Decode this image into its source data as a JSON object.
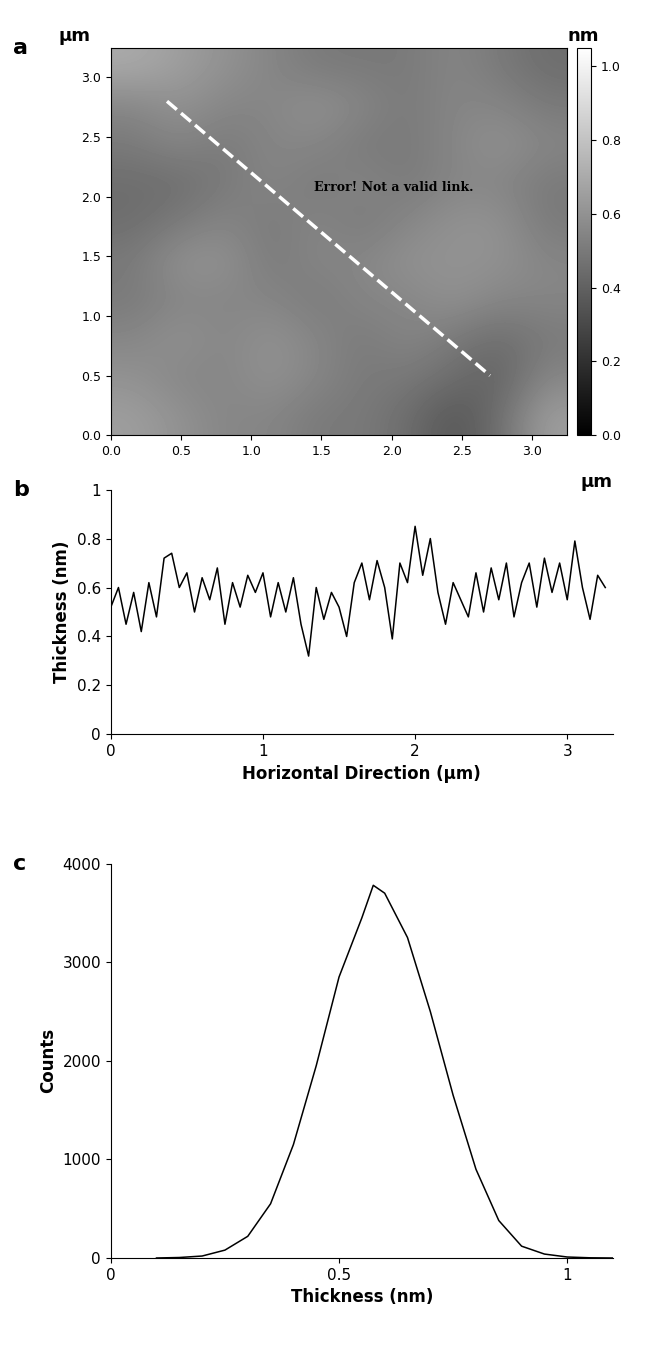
{
  "chart_data": [
    {
      "panel": "a",
      "type": "heatmap",
      "xlim": [
        0,
        3.25
      ],
      "ylim": [
        0,
        3.25
      ],
      "xticks": [
        0.0,
        0.5,
        1.0,
        1.5,
        2.0,
        2.5,
        3.0
      ],
      "yticks": [
        0.0,
        0.5,
        1.0,
        1.5,
        2.0,
        2.5,
        3.0
      ],
      "x_unit_label": "μm",
      "y_unit_label": "μm",
      "color": "gray",
      "cells": [
        [
          0.65,
          0.6,
          0.55,
          0.55,
          0.5,
          0.5,
          0.45,
          0.35,
          0.45,
          0.65
        ],
        [
          0.6,
          0.55,
          0.55,
          0.6,
          0.55,
          0.5,
          0.5,
          0.45,
          0.4,
          0.55
        ],
        [
          0.55,
          0.6,
          0.55,
          0.6,
          0.55,
          0.5,
          0.55,
          0.5,
          0.45,
          0.5
        ],
        [
          0.5,
          0.55,
          0.55,
          0.55,
          0.5,
          0.55,
          0.55,
          0.6,
          0.55,
          0.55
        ],
        [
          0.5,
          0.6,
          0.6,
          0.5,
          0.55,
          0.55,
          0.6,
          0.6,
          0.6,
          0.55
        ],
        [
          0.45,
          0.5,
          0.55,
          0.5,
          0.55,
          0.5,
          0.55,
          0.6,
          0.6,
          0.5
        ],
        [
          0.45,
          0.45,
          0.5,
          0.55,
          0.5,
          0.55,
          0.5,
          0.55,
          0.55,
          0.5
        ],
        [
          0.5,
          0.55,
          0.5,
          0.55,
          0.55,
          0.5,
          0.5,
          0.55,
          0.6,
          0.55
        ],
        [
          0.55,
          0.6,
          0.55,
          0.55,
          0.6,
          0.55,
          0.5,
          0.55,
          0.55,
          0.5
        ],
        [
          0.7,
          0.65,
          0.6,
          0.55,
          0.5,
          0.5,
          0.5,
          0.55,
          0.5,
          0.45
        ]
      ],
      "colorbar": {
        "label": "nm",
        "range": [
          0,
          1.05
        ],
        "ticks": [
          0.0,
          0.2,
          0.4,
          0.6,
          0.8,
          1.0
        ]
      },
      "line": {
        "x": [
          0.4,
          2.7
        ],
        "y": [
          2.8,
          0.5
        ],
        "color": "white",
        "line_style": "dashed"
      },
      "annotation": {
        "text": "Error! Not a valid link.",
        "x": 1.45,
        "y": 2.05
      }
    },
    {
      "panel": "b",
      "type": "line",
      "color": "black",
      "x_label": "Horizontal Direction (µm)",
      "y_label": "Thickness (nm)",
      "xlim": [
        0,
        3.3
      ],
      "ylim": [
        0,
        1
      ],
      "xticks": [
        0,
        1,
        2,
        3
      ],
      "yticks": [
        0,
        0.2,
        0.4,
        0.6,
        0.8,
        1
      ],
      "x": [
        0.0,
        0.05,
        0.1,
        0.15,
        0.2,
        0.25,
        0.3,
        0.35,
        0.4,
        0.45,
        0.5,
        0.55,
        0.6,
        0.65,
        0.7,
        0.75,
        0.8,
        0.85,
        0.9,
        0.95,
        1.0,
        1.05,
        1.1,
        1.15,
        1.2,
        1.25,
        1.3,
        1.35,
        1.4,
        1.45,
        1.5,
        1.55,
        1.6,
        1.65,
        1.7,
        1.75,
        1.8,
        1.85,
        1.9,
        1.95,
        2.0,
        2.05,
        2.1,
        2.15,
        2.2,
        2.25,
        2.3,
        2.35,
        2.4,
        2.45,
        2.5,
        2.55,
        2.6,
        2.65,
        2.7,
        2.75,
        2.8,
        2.85,
        2.9,
        2.95,
        3.0,
        3.05,
        3.1,
        3.15,
        3.2,
        3.25
      ],
      "values": [
        0.52,
        0.6,
        0.45,
        0.58,
        0.42,
        0.62,
        0.48,
        0.72,
        0.74,
        0.6,
        0.66,
        0.5,
        0.64,
        0.55,
        0.68,
        0.45,
        0.62,
        0.52,
        0.65,
        0.58,
        0.66,
        0.48,
        0.62,
        0.5,
        0.64,
        0.45,
        0.32,
        0.6,
        0.47,
        0.58,
        0.52,
        0.4,
        0.62,
        0.7,
        0.55,
        0.71,
        0.6,
        0.39,
        0.7,
        0.62,
        0.85,
        0.65,
        0.8,
        0.58,
        0.45,
        0.62,
        0.55,
        0.48,
        0.66,
        0.5,
        0.68,
        0.55,
        0.7,
        0.48,
        0.62,
        0.7,
        0.52,
        0.72,
        0.58,
        0.7,
        0.55,
        0.79,
        0.6,
        0.47,
        0.65,
        0.6
      ]
    },
    {
      "panel": "c",
      "type": "line",
      "color": "black",
      "x_label": "Thickness (nm)",
      "y_label": "Counts",
      "xlim": [
        0,
        1.1
      ],
      "ylim": [
        0,
        4000
      ],
      "xticks": [
        0,
        0.5,
        1
      ],
      "yticks": [
        0,
        1000,
        2000,
        3000,
        4000
      ],
      "x": [
        0.1,
        0.15,
        0.2,
        0.25,
        0.3,
        0.35,
        0.4,
        0.45,
        0.5,
        0.55,
        0.575,
        0.6,
        0.65,
        0.7,
        0.75,
        0.8,
        0.85,
        0.9,
        0.95,
        1.0,
        1.05,
        1.1
      ],
      "values": [
        0,
        5,
        20,
        80,
        220,
        550,
        1150,
        1950,
        2850,
        3450,
        3780,
        3700,
        3250,
        2500,
        1650,
        900,
        380,
        120,
        40,
        10,
        2,
        0
      ]
    }
  ]
}
